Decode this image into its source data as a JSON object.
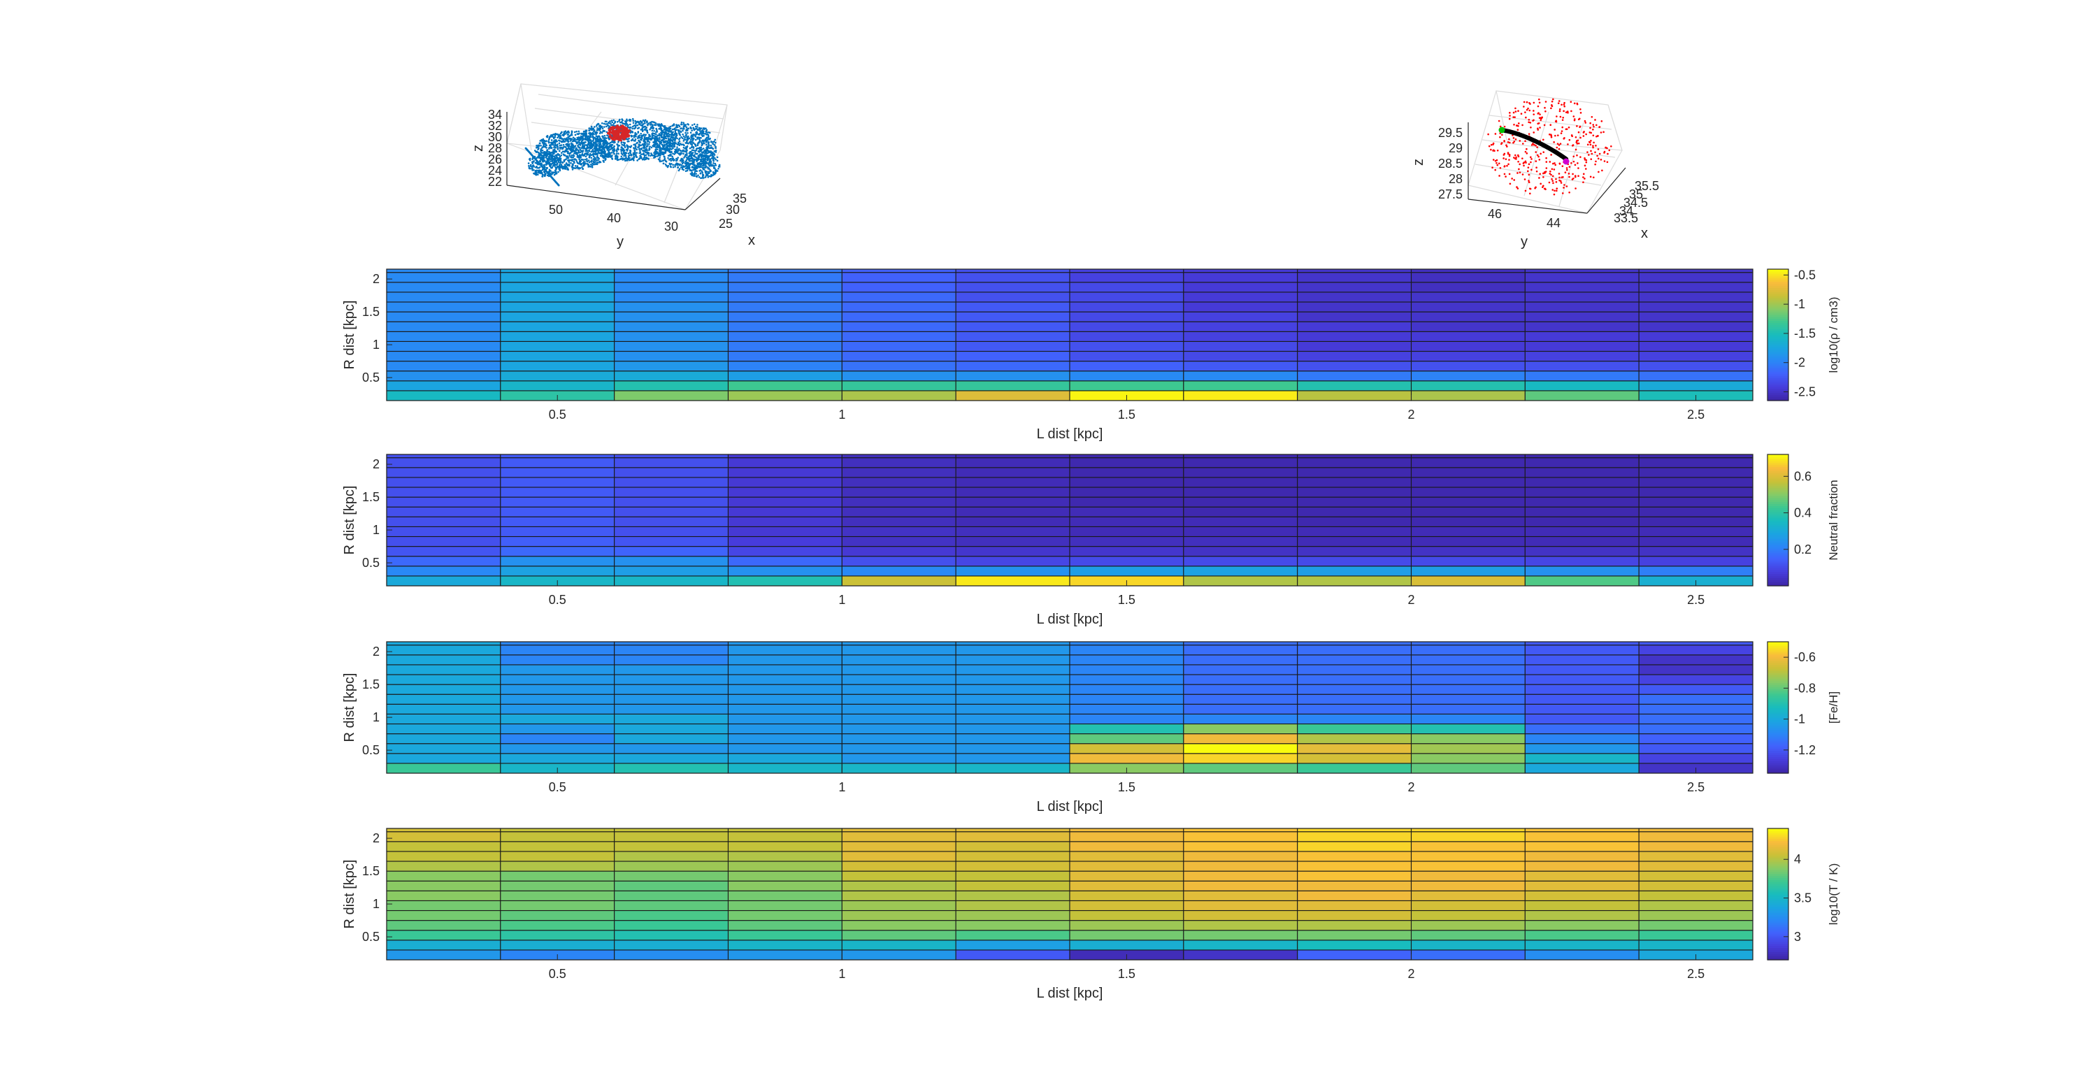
{
  "figure": {
    "background": "#ffffff"
  },
  "scatter_left": {
    "xlabel": "x",
    "ylabel": "y",
    "zlabel": "z",
    "z_ticks": [
      "34",
      "32",
      "30",
      "28",
      "26",
      "24",
      "22"
    ],
    "y_ticks": [
      "50",
      "40",
      "30"
    ],
    "x_ticks": [
      "35",
      "30",
      "25"
    ],
    "point_color": "#0072bd",
    "highlight_color": "#d62728"
  },
  "scatter_right": {
    "xlabel": "x",
    "ylabel": "y",
    "zlabel": "z",
    "z_ticks": [
      "29.5",
      "29",
      "28.5",
      "28",
      "27.5"
    ],
    "y_ticks": [
      "46",
      "44"
    ],
    "x_ticks": [
      "35.5",
      "35",
      "34.5",
      "34",
      "33.5"
    ],
    "point_color": "#ff0000",
    "path_color": "#000000",
    "start_color": "#00c000",
    "end_color": "#d000d0"
  },
  "chart_data": [
    {
      "type": "heatmap",
      "xlabel": "L dist [kpc]",
      "ylabel": "R dist [kpc]",
      "colorbar_label": "log10(ρ / cm3)",
      "xlim": [
        0.2,
        2.6
      ],
      "ylim": [
        0.15,
        2.15
      ],
      "x_edges": [
        0.2,
        0.4,
        0.6,
        0.8,
        1.0,
        1.2,
        1.4,
        1.6,
        1.8,
        2.0,
        2.2,
        2.4,
        2.6
      ],
      "y_edges": [
        0.15,
        0.3,
        0.45,
        0.6,
        0.75,
        0.9,
        1.05,
        1.2,
        1.35,
        1.5,
        1.65,
        1.8,
        1.95,
        2.1,
        2.15
      ],
      "clim": [
        -2.65,
        -0.4
      ],
      "colorbar_ticks": [
        "-0.5",
        "-1",
        "-1.5",
        "-2",
        "-2.5"
      ],
      "colorbar_tick_values": [
        -0.5,
        -1,
        -1.5,
        -2,
        -2.5
      ],
      "values": [
        [
          -1.55,
          -1.4,
          -1.1,
          -1.0,
          -0.95,
          -0.75,
          -0.42,
          -0.45,
          -0.9,
          -0.95,
          -1.2,
          -1.5
        ],
        [
          -1.75,
          -1.6,
          -1.45,
          -1.3,
          -1.35,
          -1.35,
          -1.3,
          -1.3,
          -1.45,
          -1.45,
          -1.55,
          -1.7
        ],
        [
          -1.9,
          -1.7,
          -1.7,
          -1.8,
          -1.9,
          -1.9,
          -1.95,
          -1.95,
          -2.05,
          -2.0,
          -2.05,
          -2.1
        ],
        [
          -1.95,
          -1.75,
          -1.85,
          -2.0,
          -2.1,
          -2.15,
          -2.2,
          -2.25,
          -2.3,
          -2.3,
          -2.3,
          -2.3
        ],
        [
          -1.95,
          -1.75,
          -1.9,
          -2.05,
          -2.15,
          -2.2,
          -2.3,
          -2.35,
          -2.4,
          -2.4,
          -2.4,
          -2.4
        ],
        [
          -1.95,
          -1.75,
          -1.9,
          -2.05,
          -2.15,
          -2.25,
          -2.3,
          -2.35,
          -2.45,
          -2.45,
          -2.45,
          -2.45
        ],
        [
          -1.95,
          -1.75,
          -1.9,
          -2.05,
          -2.15,
          -2.25,
          -2.35,
          -2.4,
          -2.45,
          -2.45,
          -2.45,
          -2.45
        ],
        [
          -1.95,
          -1.75,
          -1.9,
          -2.05,
          -2.15,
          -2.25,
          -2.35,
          -2.4,
          -2.45,
          -2.5,
          -2.5,
          -2.5
        ],
        [
          -1.95,
          -1.75,
          -1.9,
          -2.05,
          -2.15,
          -2.25,
          -2.35,
          -2.4,
          -2.5,
          -2.5,
          -2.5,
          -2.5
        ],
        [
          -1.95,
          -1.75,
          -1.9,
          -2.05,
          -2.15,
          -2.25,
          -2.35,
          -2.45,
          -2.5,
          -2.5,
          -2.5,
          -2.5
        ],
        [
          -1.95,
          -1.75,
          -1.95,
          -2.05,
          -2.15,
          -2.3,
          -2.35,
          -2.45,
          -2.5,
          -2.5,
          -2.5,
          -2.5
        ],
        [
          -1.95,
          -1.75,
          -1.95,
          -2.05,
          -2.2,
          -2.3,
          -2.35,
          -2.45,
          -2.5,
          -2.55,
          -2.5,
          -2.5
        ],
        [
          -1.95,
          -1.75,
          -1.95,
          -2.05,
          -2.2,
          -2.3,
          -2.4,
          -2.45,
          -2.5,
          -2.55,
          -2.5,
          -2.5
        ],
        [
          -1.95,
          -1.75,
          -1.95,
          -2.05,
          -2.2,
          -2.3,
          -2.4,
          -2.45,
          -2.5,
          -2.55,
          -2.5,
          -2.5
        ]
      ]
    },
    {
      "type": "heatmap",
      "xlabel": "L dist [kpc]",
      "ylabel": "R dist [kpc]",
      "colorbar_label": "Neutral fraction",
      "xlim": [
        0.2,
        2.6
      ],
      "ylim": [
        0.15,
        2.15
      ],
      "x_edges": [
        0.2,
        0.4,
        0.6,
        0.8,
        1.0,
        1.2,
        1.4,
        1.6,
        1.8,
        2.0,
        2.2,
        2.4,
        2.6
      ],
      "y_edges": [
        0.15,
        0.3,
        0.45,
        0.6,
        0.75,
        0.9,
        1.05,
        1.2,
        1.35,
        1.5,
        1.65,
        1.8,
        1.95,
        2.1,
        2.15
      ],
      "clim": [
        0.0,
        0.72
      ],
      "colorbar_ticks": [
        "0.6",
        "0.4",
        "0.2"
      ],
      "colorbar_tick_values": [
        0.6,
        0.4,
        0.2
      ],
      "values": [
        [
          0.3,
          0.34,
          0.34,
          0.38,
          0.58,
          0.7,
          0.68,
          0.55,
          0.55,
          0.6,
          0.45,
          0.32
        ],
        [
          0.22,
          0.28,
          0.27,
          0.24,
          0.22,
          0.24,
          0.27,
          0.28,
          0.27,
          0.27,
          0.24,
          0.2
        ],
        [
          0.16,
          0.24,
          0.24,
          0.16,
          0.11,
          0.09,
          0.1,
          0.1,
          0.1,
          0.1,
          0.09,
          0.08
        ],
        [
          0.12,
          0.16,
          0.15,
          0.09,
          0.06,
          0.05,
          0.05,
          0.04,
          0.04,
          0.04,
          0.04,
          0.04
        ],
        [
          0.11,
          0.14,
          0.12,
          0.07,
          0.04,
          0.03,
          0.03,
          0.03,
          0.02,
          0.02,
          0.02,
          0.02
        ],
        [
          0.11,
          0.13,
          0.11,
          0.06,
          0.04,
          0.03,
          0.02,
          0.02,
          0.02,
          0.02,
          0.02,
          0.02
        ],
        [
          0.11,
          0.13,
          0.11,
          0.06,
          0.03,
          0.02,
          0.02,
          0.02,
          0.01,
          0.01,
          0.01,
          0.01
        ],
        [
          0.11,
          0.13,
          0.11,
          0.06,
          0.03,
          0.02,
          0.02,
          0.01,
          0.01,
          0.01,
          0.01,
          0.01
        ],
        [
          0.11,
          0.13,
          0.11,
          0.06,
          0.03,
          0.02,
          0.01,
          0.01,
          0.01,
          0.01,
          0.01,
          0.01
        ],
        [
          0.11,
          0.13,
          0.11,
          0.06,
          0.03,
          0.02,
          0.01,
          0.01,
          0.01,
          0.01,
          0.01,
          0.01
        ],
        [
          0.11,
          0.13,
          0.11,
          0.06,
          0.03,
          0.02,
          0.01,
          0.01,
          0.01,
          0.01,
          0.01,
          0.01
        ],
        [
          0.11,
          0.13,
          0.11,
          0.06,
          0.03,
          0.02,
          0.01,
          0.01,
          0.01,
          0.01,
          0.01,
          0.01
        ],
        [
          0.11,
          0.13,
          0.11,
          0.06,
          0.03,
          0.02,
          0.01,
          0.01,
          0.01,
          0.01,
          0.01,
          0.01
        ],
        [
          0.11,
          0.13,
          0.11,
          0.06,
          0.03,
          0.02,
          0.01,
          0.01,
          0.01,
          0.01,
          0.01,
          0.01
        ]
      ]
    },
    {
      "type": "heatmap",
      "xlabel": "L dist [kpc]",
      "ylabel": "R dist [kpc]",
      "colorbar_label": "[Fe/H]",
      "xlim": [
        0.2,
        2.6
      ],
      "ylim": [
        0.15,
        2.15
      ],
      "x_edges": [
        0.2,
        0.4,
        0.6,
        0.8,
        1.0,
        1.2,
        1.4,
        1.6,
        1.8,
        2.0,
        2.2,
        2.4,
        2.6
      ],
      "y_edges": [
        0.15,
        0.3,
        0.45,
        0.6,
        0.75,
        0.9,
        1.05,
        1.2,
        1.35,
        1.5,
        1.65,
        1.8,
        1.95,
        2.1,
        2.15
      ],
      "clim": [
        -1.35,
        -0.5
      ],
      "colorbar_ticks": [
        "-0.6",
        "-0.8",
        "-1",
        "-1.2"
      ],
      "colorbar_tick_values": [
        -0.6,
        -0.8,
        -1.0,
        -1.2
      ],
      "values": [
        [
          -0.85,
          -0.95,
          -0.9,
          -0.95,
          -0.95,
          -0.95,
          -0.75,
          -0.8,
          -0.85,
          -0.8,
          -1.0,
          -1.3
        ],
        [
          -1.0,
          -1.0,
          -1.0,
          -1.0,
          -1.05,
          -1.05,
          -0.6,
          -0.55,
          -0.65,
          -0.75,
          -0.95,
          -1.25
        ],
        [
          -1.0,
          -1.05,
          -1.05,
          -1.05,
          -1.05,
          -1.05,
          -0.65,
          -0.5,
          -0.62,
          -0.72,
          -1.05,
          -1.2
        ],
        [
          -1.0,
          -1.1,
          -1.0,
          -1.05,
          -1.05,
          -1.05,
          -0.8,
          -0.6,
          -0.7,
          -0.75,
          -1.1,
          -1.18
        ],
        [
          -1.0,
          -1.05,
          -1.0,
          -1.05,
          -1.05,
          -1.05,
          -0.9,
          -0.75,
          -0.85,
          -0.9,
          -1.15,
          -1.15
        ],
        [
          -1.0,
          -1.0,
          -1.0,
          -1.05,
          -1.05,
          -1.05,
          -1.1,
          -1.1,
          -1.1,
          -1.1,
          -1.2,
          -1.15
        ],
        [
          -1.0,
          -1.05,
          -1.05,
          -1.05,
          -1.05,
          -1.05,
          -1.1,
          -1.15,
          -1.15,
          -1.15,
          -1.2,
          -1.15
        ],
        [
          -1.0,
          -1.05,
          -1.05,
          -1.05,
          -1.05,
          -1.05,
          -1.1,
          -1.15,
          -1.15,
          -1.15,
          -1.2,
          -1.15
        ],
        [
          -1.0,
          -1.05,
          -1.05,
          -1.05,
          -1.05,
          -1.05,
          -1.1,
          -1.15,
          -1.15,
          -1.15,
          -1.2,
          -1.2
        ],
        [
          -1.0,
          -1.05,
          -1.05,
          -1.05,
          -1.05,
          -1.05,
          -1.1,
          -1.15,
          -1.15,
          -1.15,
          -1.2,
          -1.25
        ],
        [
          -1.0,
          -1.05,
          -1.05,
          -1.05,
          -1.05,
          -1.05,
          -1.1,
          -1.15,
          -1.15,
          -1.15,
          -1.2,
          -1.3
        ],
        [
          -1.0,
          -1.1,
          -1.1,
          -1.05,
          -1.05,
          -1.05,
          -1.1,
          -1.15,
          -1.15,
          -1.15,
          -1.2,
          -1.3
        ],
        [
          -1.0,
          -1.1,
          -1.1,
          -1.05,
          -1.05,
          -1.05,
          -1.1,
          -1.15,
          -1.15,
          -1.15,
          -1.2,
          -1.25
        ],
        [
          -1.0,
          -1.1,
          -1.1,
          -1.05,
          -1.05,
          -1.05,
          -1.1,
          -1.15,
          -1.15,
          -1.15,
          -1.2,
          -1.2
        ]
      ]
    },
    {
      "type": "heatmap",
      "xlabel": "L dist [kpc]",
      "ylabel": "R dist [kpc]",
      "colorbar_label": "log10(T / K)",
      "xlim": [
        0.2,
        2.6
      ],
      "ylim": [
        0.15,
        2.15
      ],
      "x_edges": [
        0.2,
        0.4,
        0.6,
        0.8,
        1.0,
        1.2,
        1.4,
        1.6,
        1.8,
        2.0,
        2.2,
        2.4,
        2.6
      ],
      "y_edges": [
        0.15,
        0.3,
        0.45,
        0.6,
        0.75,
        0.9,
        1.05,
        1.2,
        1.35,
        1.5,
        1.65,
        1.8,
        1.95,
        2.1,
        2.15
      ],
      "clim": [
        2.7,
        4.4
      ],
      "colorbar_ticks": [
        "4",
        "3.5",
        "3"
      ],
      "colorbar_tick_values": [
        4.0,
        3.5,
        3.0
      ],
      "values": [
        [
          3.3,
          3.2,
          3.25,
          3.3,
          3.3,
          3.0,
          2.75,
          2.8,
          3.05,
          3.1,
          3.25,
          3.4
        ],
        [
          3.45,
          3.45,
          3.45,
          3.5,
          3.5,
          3.35,
          3.45,
          3.5,
          3.55,
          3.5,
          3.5,
          3.5
        ],
        [
          3.7,
          3.65,
          3.6,
          3.7,
          3.8,
          3.75,
          3.85,
          3.85,
          3.85,
          3.8,
          3.75,
          3.7
        ],
        [
          3.8,
          3.75,
          3.7,
          3.8,
          3.9,
          3.9,
          3.95,
          4.0,
          4.0,
          3.95,
          3.9,
          3.85
        ],
        [
          3.85,
          3.8,
          3.75,
          3.85,
          3.95,
          3.95,
          4.05,
          4.1,
          4.1,
          4.05,
          4.0,
          3.95
        ],
        [
          3.85,
          3.85,
          3.8,
          3.85,
          3.95,
          4.0,
          4.1,
          4.15,
          4.15,
          4.1,
          4.05,
          4.0
        ],
        [
          3.9,
          3.85,
          3.8,
          3.85,
          4.0,
          4.0,
          4.1,
          4.15,
          4.2,
          4.15,
          4.1,
          4.05
        ],
        [
          3.9,
          3.85,
          3.8,
          3.9,
          4.0,
          4.05,
          4.15,
          4.2,
          4.2,
          4.2,
          4.15,
          4.1
        ],
        [
          3.9,
          3.85,
          3.85,
          3.9,
          4.05,
          4.05,
          4.15,
          4.2,
          4.25,
          4.2,
          4.15,
          4.1
        ],
        [
          4.0,
          4.0,
          3.95,
          3.95,
          4.1,
          4.1,
          4.15,
          4.2,
          4.25,
          4.25,
          4.2,
          4.15
        ],
        [
          4.05,
          4.05,
          4.0,
          4.0,
          4.15,
          4.1,
          4.15,
          4.2,
          4.25,
          4.25,
          4.2,
          4.15
        ],
        [
          4.05,
          4.05,
          4.05,
          4.05,
          4.15,
          4.1,
          4.2,
          4.25,
          4.3,
          4.25,
          4.25,
          4.2
        ],
        [
          4.1,
          4.05,
          4.05,
          4.05,
          4.15,
          4.15,
          4.2,
          4.25,
          4.3,
          4.3,
          4.25,
          4.2
        ],
        [
          4.1,
          4.05,
          4.05,
          4.05,
          4.15,
          4.15,
          4.2,
          4.25,
          4.3,
          4.3,
          4.25,
          4.2
        ]
      ]
    }
  ],
  "heatmap_axes": {
    "x_ticks": [
      0.5,
      1,
      1.5,
      2,
      2.5
    ],
    "x_tick_labels": [
      "0.5",
      "1",
      "1.5",
      "2",
      "2.5"
    ],
    "y_ticks": [
      0.5,
      1,
      1.5,
      2
    ],
    "y_tick_labels": [
      "0.5",
      "1",
      "1.5",
      "2"
    ]
  },
  "colormap": "parula"
}
